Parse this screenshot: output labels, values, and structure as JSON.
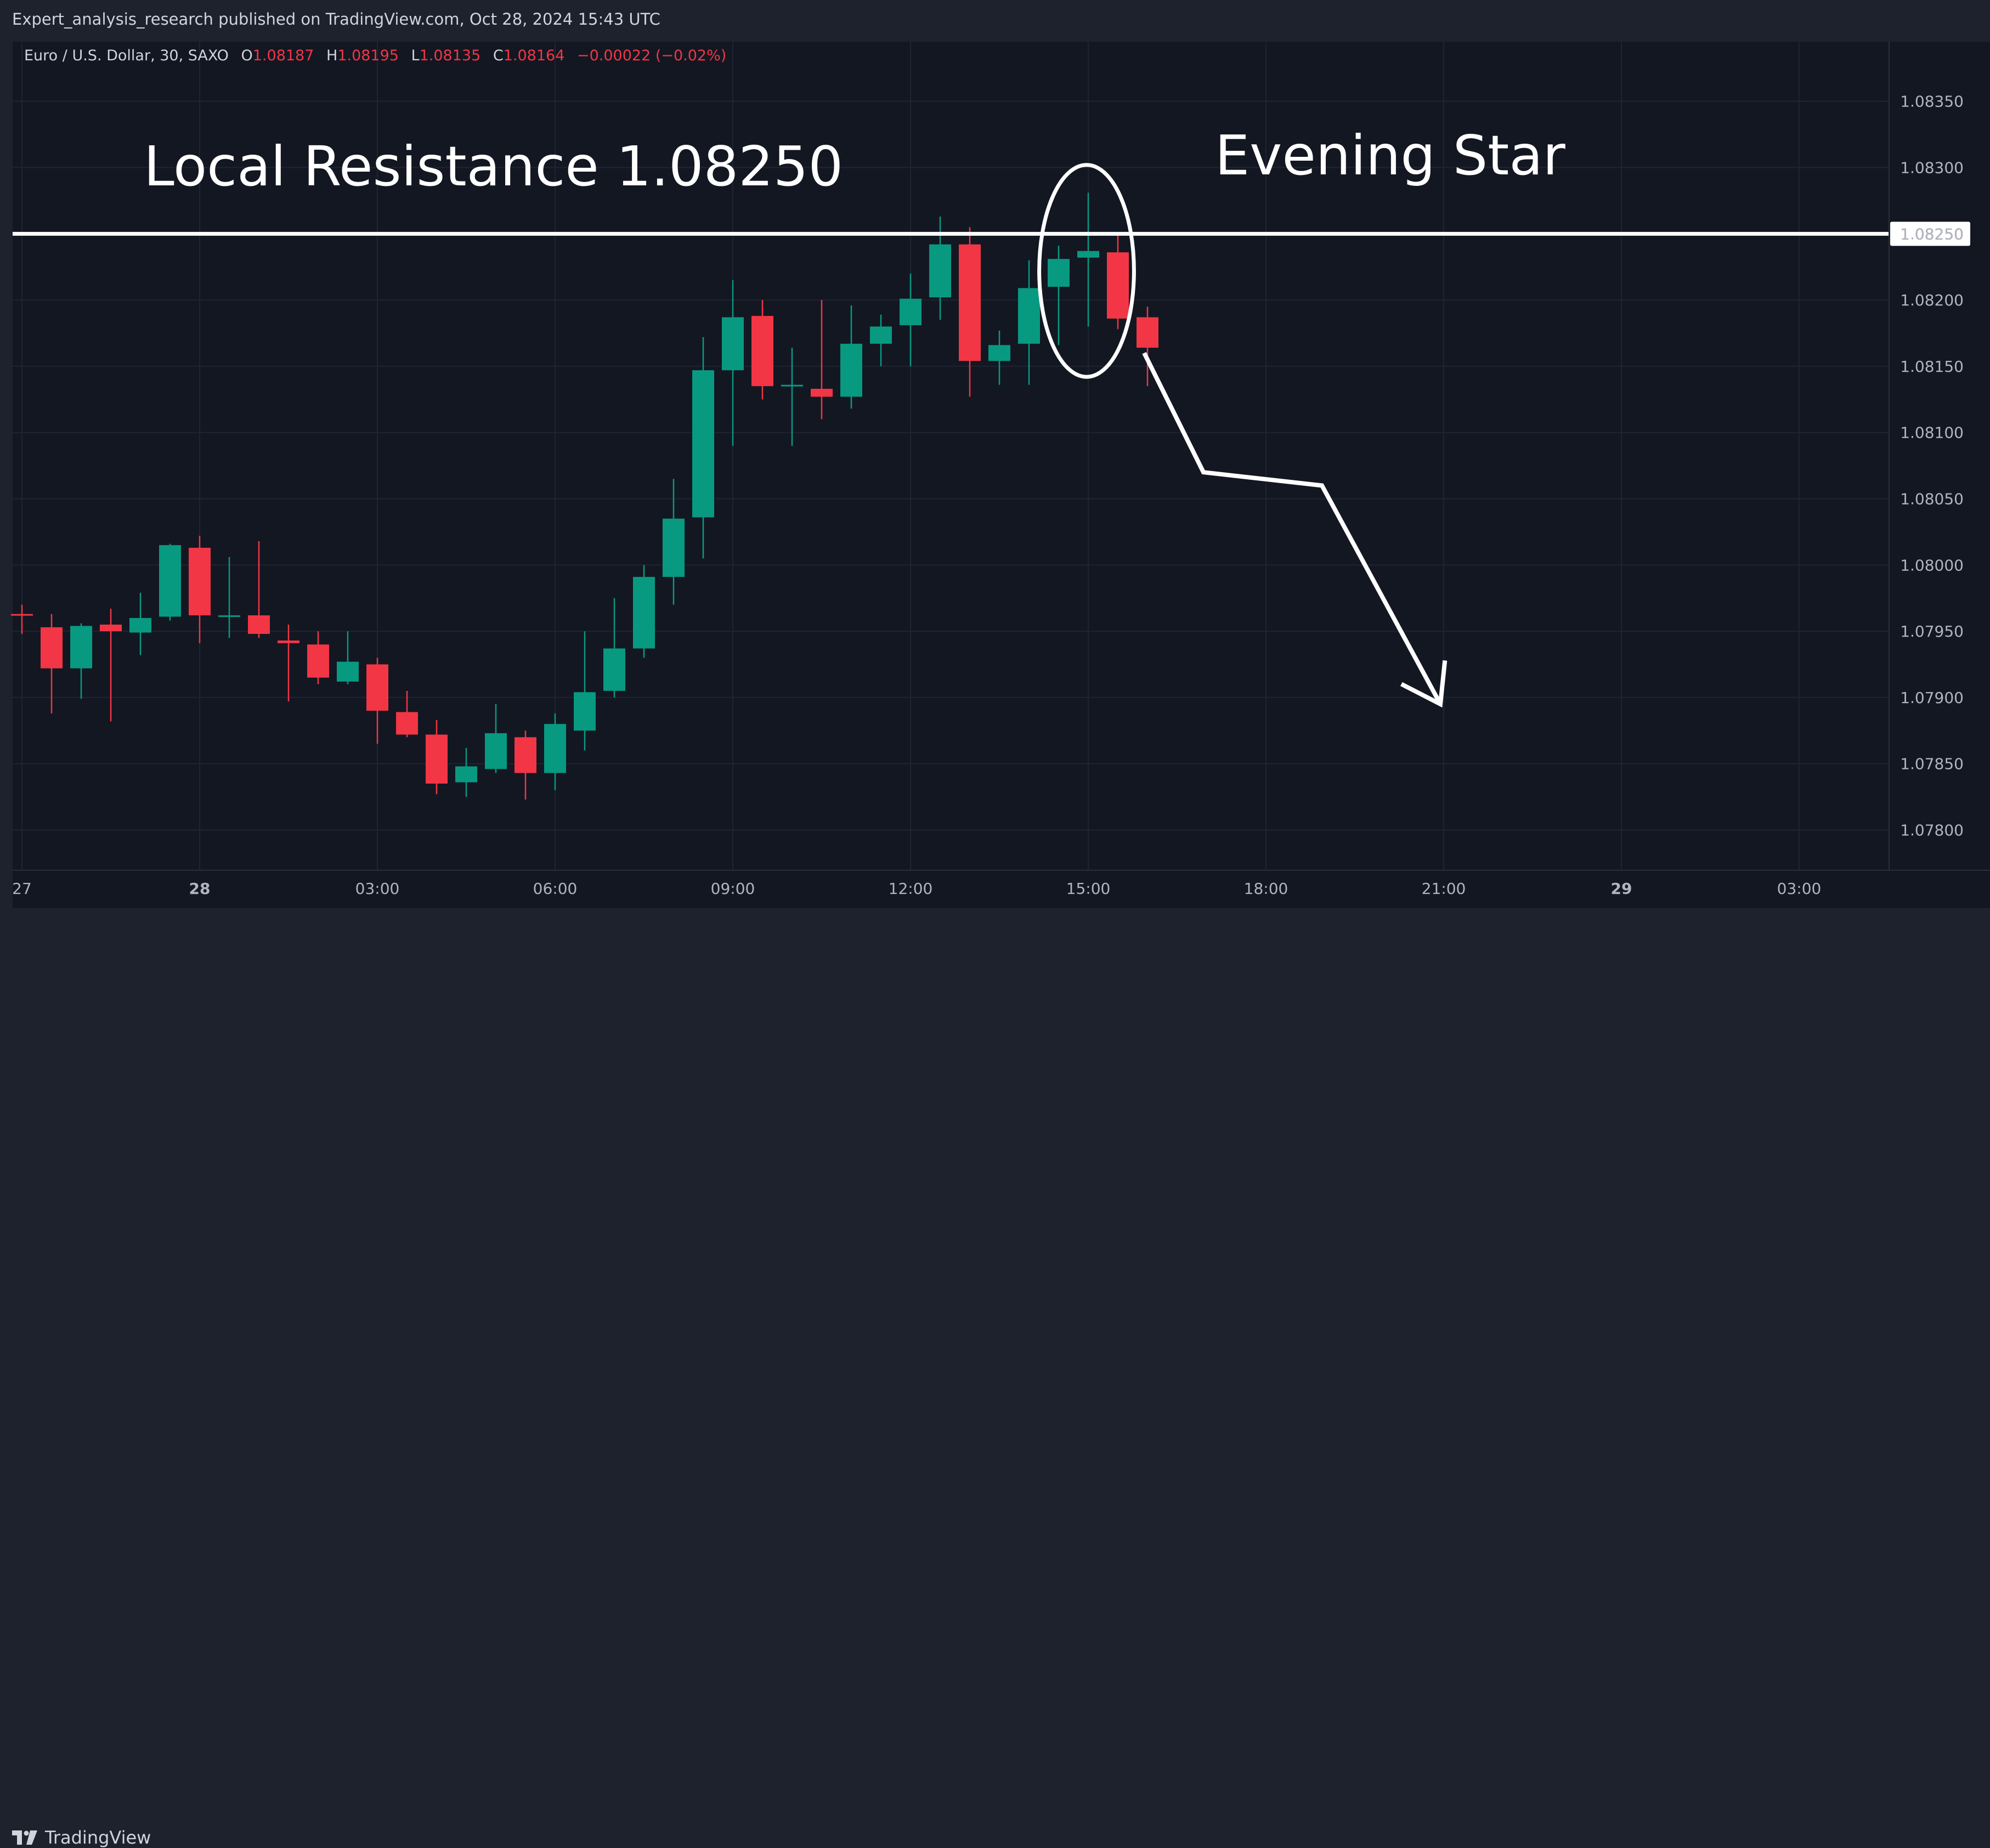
{
  "header": {
    "published": "Expert_analysis_research published on TradingView.com, Oct 28, 2024 15:43 UTC"
  },
  "legend": {
    "symbol": "Euro / U.S. Dollar, 30, SAXO",
    "open_label": "O",
    "open": "1.08187",
    "high_label": "H",
    "high": "1.08195",
    "low_label": "L",
    "low": "1.08135",
    "close_label": "C",
    "close": "1.08164",
    "change": "−0.00022 (−0.02%)"
  },
  "footer": {
    "brand": "TradingView"
  },
  "colors": {
    "up": "#089981",
    "down": "#f23645",
    "background": "#131722",
    "annotation": "#ffffff",
    "grid": "#1f2433",
    "axis_text": "#b2b5be"
  },
  "chart_data": {
    "type": "candlestick",
    "interval_minutes": 30,
    "ylim": [
      1.0777,
      1.08395
    ],
    "y_ticks": [
      "1.07800",
      "1.07850",
      "1.07900",
      "1.07950",
      "1.08000",
      "1.08050",
      "1.08100",
      "1.08150",
      "1.08200",
      "1.08250",
      "1.08300",
      "1.08350"
    ],
    "x_ticks": [
      {
        "label": "27",
        "time": "2024-10-27 21:00",
        "bold": false
      },
      {
        "label": "28",
        "time": "2024-10-28 00:00",
        "bold": true
      },
      {
        "label": "03:00",
        "time": "2024-10-28 03:00",
        "bold": false
      },
      {
        "label": "06:00",
        "time": "2024-10-28 06:00",
        "bold": false
      },
      {
        "label": "09:00",
        "time": "2024-10-28 09:00",
        "bold": false
      },
      {
        "label": "12:00",
        "time": "2024-10-28 12:00",
        "bold": false
      },
      {
        "label": "15:00",
        "time": "2024-10-28 15:00",
        "bold": false
      },
      {
        "label": "18:00",
        "time": "2024-10-28 18:00",
        "bold": false
      },
      {
        "label": "21:00",
        "time": "2024-10-28 21:00",
        "bold": false
      },
      {
        "label": "29",
        "time": "2024-10-29 00:00",
        "bold": true
      },
      {
        "label": "03:00",
        "time": "2024-10-29 03:00",
        "bold": false
      }
    ],
    "x_end": "2024-10-29 04:00",
    "candles": [
      {
        "t": "2024-10-27 21:00",
        "o": 1.07963,
        "h": 1.0797,
        "l": 1.07948,
        "c": 1.07962
      },
      {
        "t": "2024-10-27 21:30",
        "o": 1.07953,
        "h": 1.07963,
        "l": 1.07888,
        "c": 1.07922
      },
      {
        "t": "2024-10-27 22:00",
        "o": 1.07922,
        "h": 1.07956,
        "l": 1.07899,
        "c": 1.07954
      },
      {
        "t": "2024-10-27 22:30",
        "o": 1.07955,
        "h": 1.07967,
        "l": 1.07882,
        "c": 1.0795
      },
      {
        "t": "2024-10-27 23:00",
        "o": 1.07949,
        "h": 1.07979,
        "l": 1.07932,
        "c": 1.0796
      },
      {
        "t": "2024-10-27 23:30",
        "o": 1.07961,
        "h": 1.08016,
        "l": 1.07958,
        "c": 1.08015
      },
      {
        "t": "2024-10-28 00:00",
        "o": 1.08013,
        "h": 1.08022,
        "l": 1.07941,
        "c": 1.07962
      },
      {
        "t": "2024-10-28 00:30",
        "o": 1.07962,
        "h": 1.08006,
        "l": 1.07945,
        "c": 1.07962
      },
      {
        "t": "2024-10-28 01:00",
        "o": 1.07962,
        "h": 1.08018,
        "l": 1.07945,
        "c": 1.07948
      },
      {
        "t": "2024-10-28 01:30",
        "o": 1.07943,
        "h": 1.07955,
        "l": 1.07897,
        "c": 1.07941
      },
      {
        "t": "2024-10-28 02:00",
        "o": 1.0794,
        "h": 1.0795,
        "l": 1.0791,
        "c": 1.07915
      },
      {
        "t": "2024-10-28 02:30",
        "o": 1.07912,
        "h": 1.0795,
        "l": 1.0791,
        "c": 1.07927
      },
      {
        "t": "2024-10-28 03:00",
        "o": 1.07925,
        "h": 1.0793,
        "l": 1.07865,
        "c": 1.0789
      },
      {
        "t": "2024-10-28 03:30",
        "o": 1.07889,
        "h": 1.07905,
        "l": 1.0787,
        "c": 1.07872
      },
      {
        "t": "2024-10-28 04:00",
        "o": 1.07872,
        "h": 1.07883,
        "l": 1.07827,
        "c": 1.07835
      },
      {
        "t": "2024-10-28 04:30",
        "o": 1.07836,
        "h": 1.07862,
        "l": 1.07825,
        "c": 1.07848
      },
      {
        "t": "2024-10-28 05:00",
        "o": 1.07846,
        "h": 1.07895,
        "l": 1.07843,
        "c": 1.07873
      },
      {
        "t": "2024-10-28 05:30",
        "o": 1.0787,
        "h": 1.07875,
        "l": 1.07823,
        "c": 1.07843
      },
      {
        "t": "2024-10-28 06:00",
        "o": 1.07843,
        "h": 1.07888,
        "l": 1.0783,
        "c": 1.0788
      },
      {
        "t": "2024-10-28 06:30",
        "o": 1.07875,
        "h": 1.0795,
        "l": 1.0786,
        "c": 1.07904
      },
      {
        "t": "2024-10-28 07:00",
        "o": 1.07905,
        "h": 1.07975,
        "l": 1.079,
        "c": 1.07937
      },
      {
        "t": "2024-10-28 07:30",
        "o": 1.07937,
        "h": 1.08,
        "l": 1.0793,
        "c": 1.07991
      },
      {
        "t": "2024-10-28 08:00",
        "o": 1.07991,
        "h": 1.08065,
        "l": 1.0797,
        "c": 1.08035
      },
      {
        "t": "2024-10-28 08:30",
        "o": 1.08036,
        "h": 1.08172,
        "l": 1.08005,
        "c": 1.08147
      },
      {
        "t": "2024-10-28 09:00",
        "o": 1.08147,
        "h": 1.08215,
        "l": 1.0809,
        "c": 1.08187
      },
      {
        "t": "2024-10-28 09:30",
        "o": 1.08188,
        "h": 1.082,
        "l": 1.08125,
        "c": 1.08135
      },
      {
        "t": "2024-10-28 10:00",
        "o": 1.08136,
        "h": 1.08164,
        "l": 1.0809,
        "c": 1.08136
      },
      {
        "t": "2024-10-28 10:30",
        "o": 1.08133,
        "h": 1.082,
        "l": 1.0811,
        "c": 1.08127
      },
      {
        "t": "2024-10-28 11:00",
        "o": 1.08127,
        "h": 1.08196,
        "l": 1.08118,
        "c": 1.08167
      },
      {
        "t": "2024-10-28 11:30",
        "o": 1.08167,
        "h": 1.08189,
        "l": 1.0815,
        "c": 1.0818
      },
      {
        "t": "2024-10-28 12:00",
        "o": 1.08181,
        "h": 1.0822,
        "l": 1.0815,
        "c": 1.08201
      },
      {
        "t": "2024-10-28 12:30",
        "o": 1.08202,
        "h": 1.08263,
        "l": 1.08185,
        "c": 1.08242
      },
      {
        "t": "2024-10-28 13:00",
        "o": 1.08242,
        "h": 1.08255,
        "l": 1.08127,
        "c": 1.08154
      },
      {
        "t": "2024-10-28 13:30",
        "o": 1.08154,
        "h": 1.08177,
        "l": 1.08136,
        "c": 1.08166
      },
      {
        "t": "2024-10-28 14:00",
        "o": 1.08167,
        "h": 1.0823,
        "l": 1.08136,
        "c": 1.08209
      },
      {
        "t": "2024-10-28 14:30",
        "o": 1.0821,
        "h": 1.08241,
        "l": 1.08166,
        "c": 1.08231
      },
      {
        "t": "2024-10-28 15:00",
        "o": 1.08232,
        "h": 1.08281,
        "l": 1.0818,
        "c": 1.08237
      },
      {
        "t": "2024-10-28 15:30",
        "o": 1.08236,
        "h": 1.0825,
        "l": 1.08178,
        "c": 1.08186
      },
      {
        "t": "2024-10-28 16:00",
        "o": 1.08187,
        "h": 1.08195,
        "l": 1.08135,
        "c": 1.08164
      }
    ],
    "annotations": {
      "resistance": {
        "label": "Local Resistance 1.08250",
        "price": 1.0825,
        "price_label": "1.08250"
      },
      "pattern": {
        "label": "Evening Star",
        "center_time": "2024-10-28 15:00",
        "center_price": 1.08222,
        "half_width_bars": 1.6,
        "half_height_price": 0.0008
      },
      "forecast_path": [
        {
          "t": "2024-10-28 16:00",
          "p": 1.0816
        },
        {
          "t": "2024-10-28 17:00",
          "p": 1.0807
        },
        {
          "t": "2024-10-28 19:00",
          "p": 1.0806
        },
        {
          "t": "2024-10-28 21:00",
          "p": 1.07895
        }
      ]
    }
  }
}
